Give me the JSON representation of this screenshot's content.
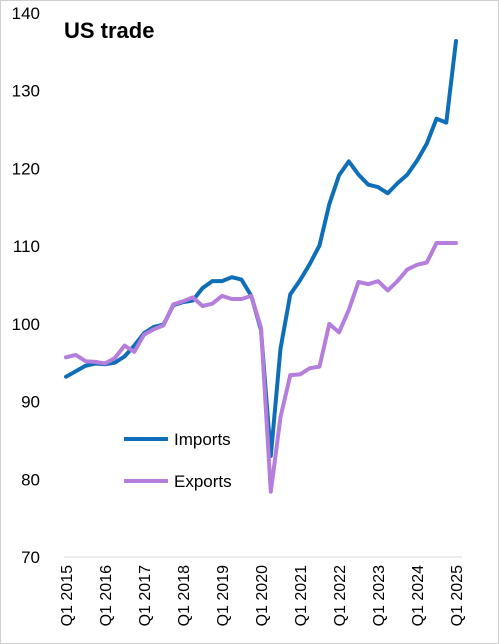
{
  "chart_data": {
    "type": "line",
    "title": "US trade",
    "xlabel": "",
    "ylabel": "",
    "ylim": [
      70,
      140
    ],
    "yticks": [
      70,
      80,
      90,
      100,
      110,
      120,
      130,
      140
    ],
    "x_tick_labels": [
      "Q1 2015",
      "Q1 2016",
      "Q1 2017",
      "Q1 2018",
      "Q1 2019",
      "Q1 2020",
      "Q1 2021",
      "Q1 2022",
      "Q1 2023",
      "Q1 2024",
      "Q1 2025"
    ],
    "x": [
      "Q1 2015",
      "Q2 2015",
      "Q3 2015",
      "Q4 2015",
      "Q1 2016",
      "Q2 2016",
      "Q3 2016",
      "Q4 2016",
      "Q1 2017",
      "Q2 2017",
      "Q3 2017",
      "Q4 2017",
      "Q1 2018",
      "Q2 2018",
      "Q3 2018",
      "Q4 2018",
      "Q1 2019",
      "Q2 2019",
      "Q3 2019",
      "Q4 2019",
      "Q1 2020",
      "Q2 2020",
      "Q3 2020",
      "Q4 2020",
      "Q1 2021",
      "Q2 2021",
      "Q3 2021",
      "Q4 2021",
      "Q1 2022",
      "Q2 2022",
      "Q3 2022",
      "Q4 2022",
      "Q1 2023",
      "Q2 2023",
      "Q3 2023",
      "Q4 2023",
      "Q1 2024",
      "Q2 2024",
      "Q3 2024",
      "Q4 2024",
      "Q1 2025"
    ],
    "grid": false,
    "legend_position": "bottom-left",
    "series": [
      {
        "name": "Imports",
        "color": "#0E6EB8",
        "values": [
          93.2,
          93.9,
          94.6,
          94.9,
          94.8,
          95.0,
          95.8,
          97.2,
          98.8,
          99.6,
          99.9,
          102.4,
          102.8,
          103.0,
          104.6,
          105.5,
          105.5,
          106.0,
          105.7,
          103.6,
          99.2,
          83.0,
          96.8,
          103.8,
          105.6,
          107.7,
          110.1,
          115.4,
          119.1,
          120.9,
          119.2,
          117.9,
          117.6,
          116.8,
          118.1,
          119.2,
          121.0,
          123.2,
          126.4,
          125.9,
          136.4
        ]
      },
      {
        "name": "Exports",
        "color": "#B57EDC",
        "values": [
          95.7,
          96.0,
          95.2,
          95.1,
          94.9,
          95.6,
          97.2,
          96.4,
          98.6,
          99.3,
          99.8,
          102.5,
          102.9,
          103.4,
          102.3,
          102.6,
          103.6,
          103.2,
          103.2,
          103.6,
          99.5,
          78.4,
          88.0,
          93.4,
          93.5,
          94.3,
          94.5,
          100.0,
          98.9,
          101.8,
          105.4,
          105.1,
          105.5,
          104.3,
          105.5,
          107.0,
          107.6,
          107.9,
          110.4,
          110.4,
          110.4
        ]
      }
    ]
  }
}
